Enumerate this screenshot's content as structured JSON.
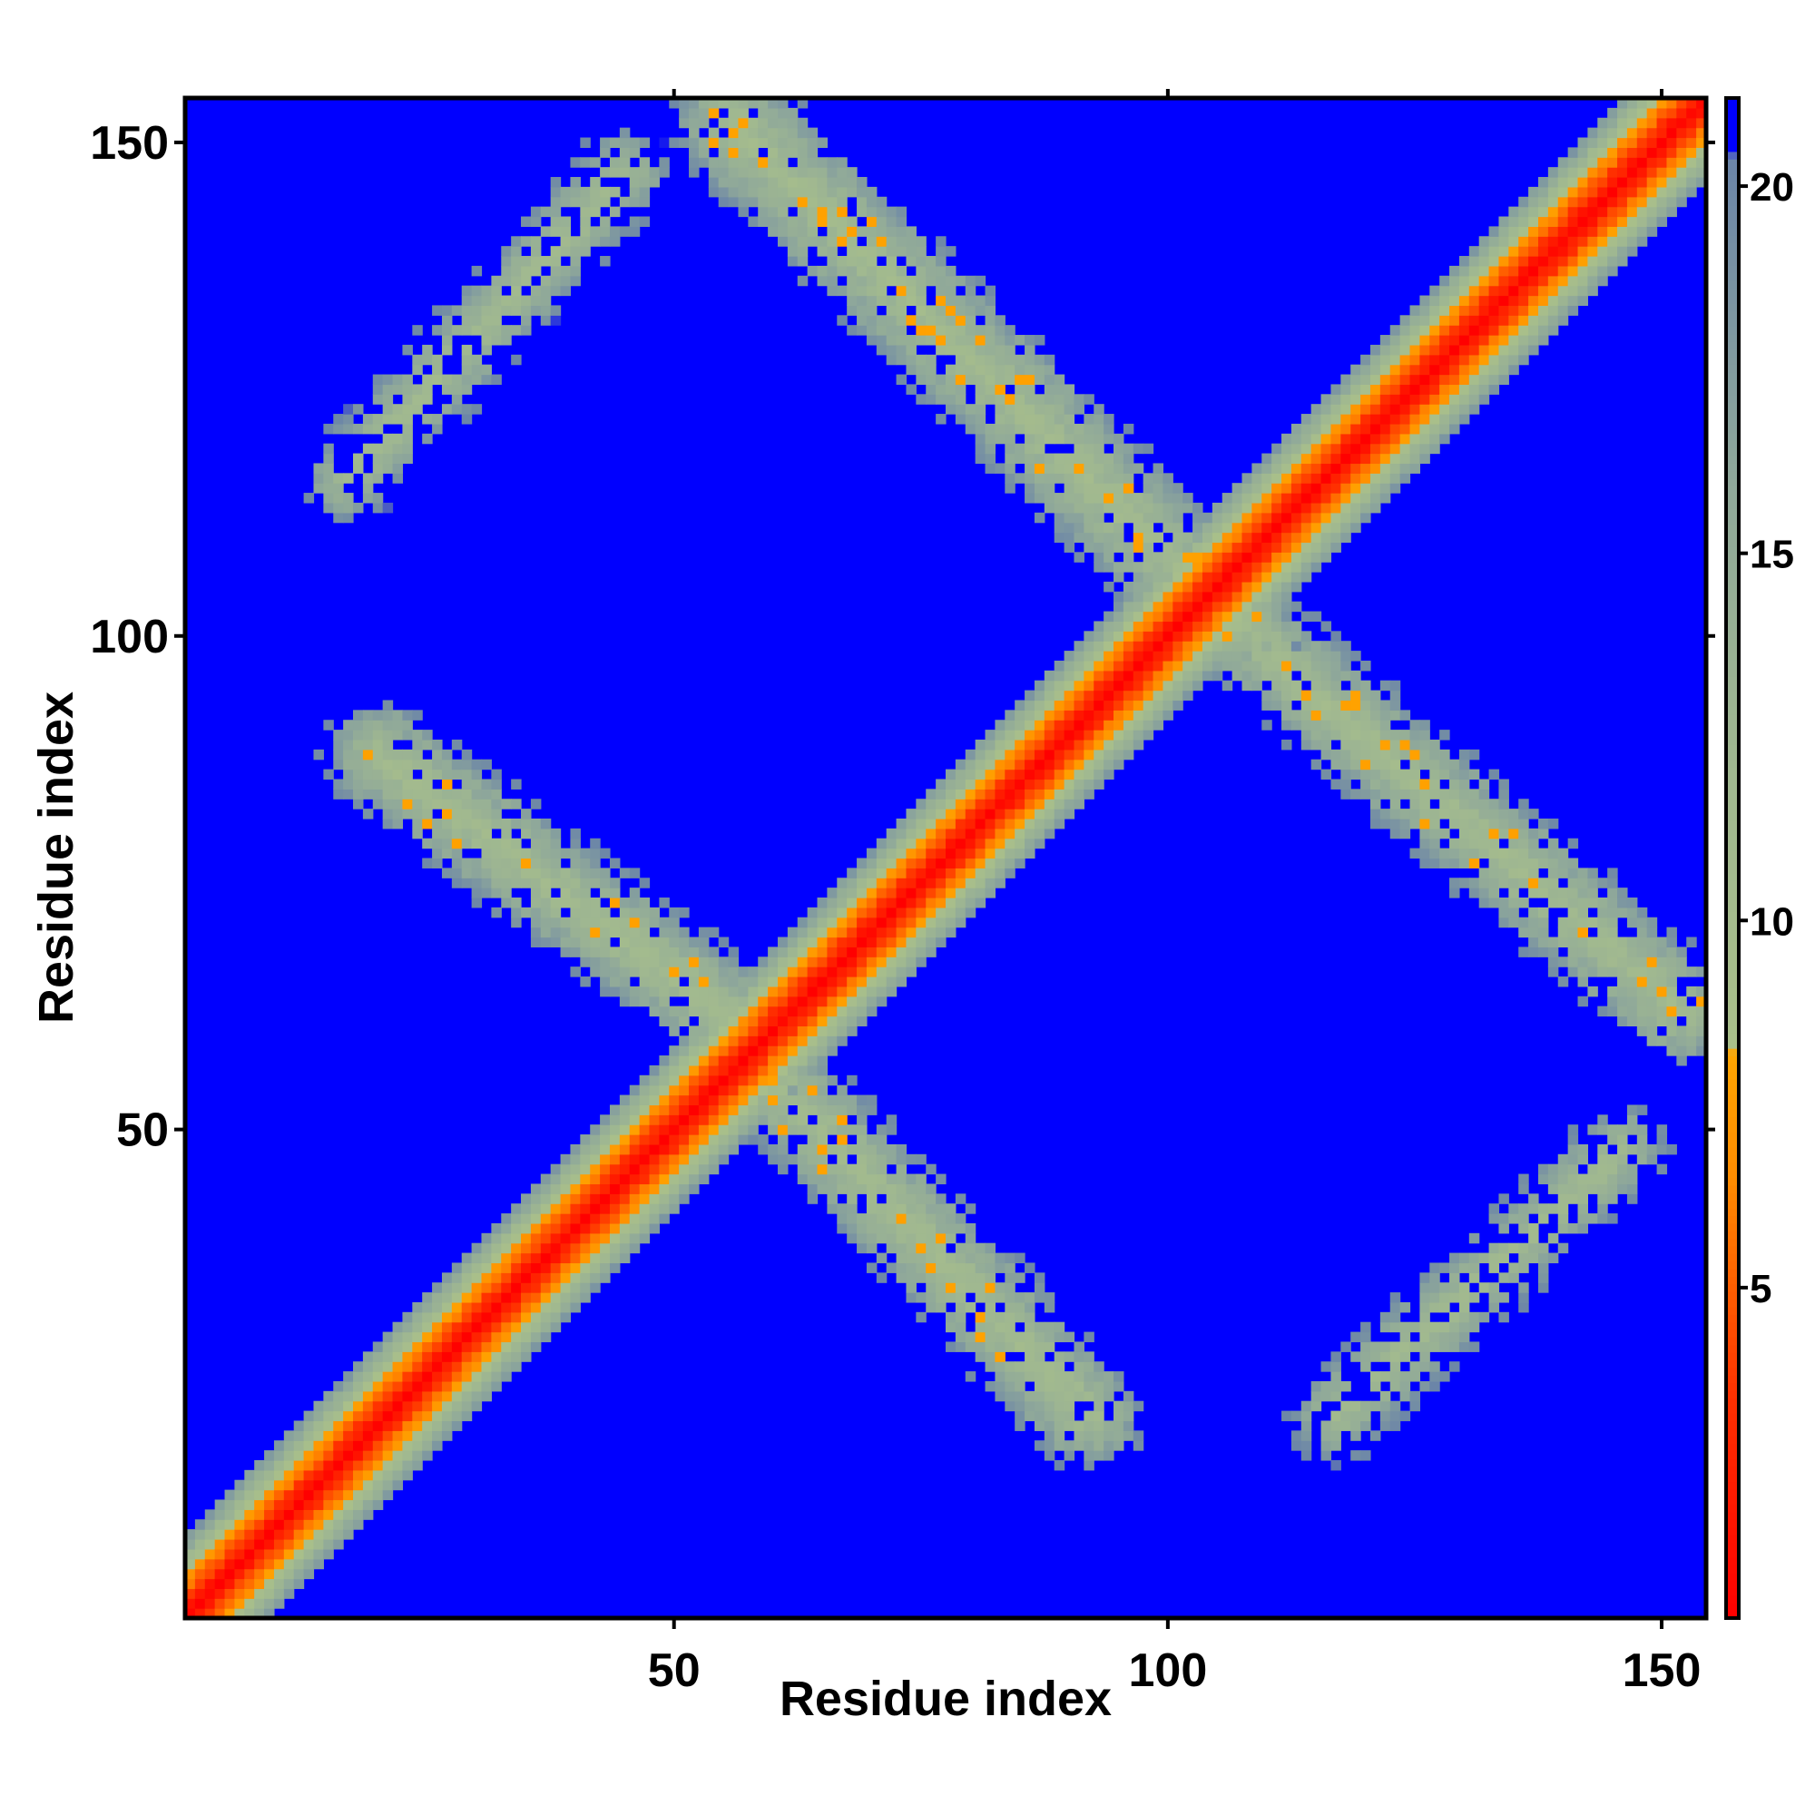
{
  "chart_data": {
    "type": "heatmap",
    "title": "",
    "xlabel": "Residue index",
    "ylabel": "Residue index",
    "n_residues": 154,
    "xlim": [
      1,
      154
    ],
    "ylim": [
      1,
      154
    ],
    "x_ticks": [
      50,
      100,
      150
    ],
    "y_ticks": [
      50,
      100,
      150
    ],
    "colorbar": {
      "range": [
        0.5,
        21.2
      ],
      "ticks": [
        5,
        10,
        15,
        20
      ],
      "stops": [
        {
          "value": 0.5,
          "color": "#ff0000"
        },
        {
          "value": 3.5,
          "color": "#ff3000"
        },
        {
          "value": 6.5,
          "color": "#ff8c00"
        },
        {
          "value": 8.2,
          "color": "#ffa500"
        },
        {
          "value": 8.3,
          "color": "#a9bf8a"
        },
        {
          "value": 12.0,
          "color": "#a0b890"
        },
        {
          "value": 16.0,
          "color": "#8fa89a"
        },
        {
          "value": 20.4,
          "color": "#6b85a8"
        },
        {
          "value": 20.5,
          "color": "#0000ff"
        },
        {
          "value": 21.2,
          "color": "#0000ff"
        }
      ],
      "background_color": "#0000ff"
    },
    "contact_regions": [
      {
        "name": "diagonal",
        "segment": [
          [
            1,
            1
          ],
          [
            154,
            154
          ]
        ],
        "halfwidth": 7.5
      },
      {
        "name": "anti-diagonal upper-left to center",
        "segment": [
          [
            56,
            152
          ],
          [
            107,
            101
          ]
        ],
        "halfwidth": 5.0
      },
      {
        "name": "anti-diagonal center to lower-right",
        "segment": [
          [
            107,
            101
          ],
          [
            152,
            62
          ]
        ],
        "halfwidth": 4.5
      },
      {
        "name": "anti-diagonal upper-left of center",
        "segment": [
          [
            20,
            88
          ],
          [
            60,
            58
          ]
        ],
        "halfwidth": 4.5
      },
      {
        "name": "anti-diagonal center to bottom",
        "segment": [
          [
            60,
            55
          ],
          [
            92,
            21
          ]
        ],
        "halfwidth": 4.5
      },
      {
        "name": "upper-left patch",
        "segment": [
          [
            17,
            116
          ],
          [
            45,
            147
          ]
        ],
        "halfwidth": 3.5
      },
      {
        "name": "lower-right patch",
        "segment": [
          [
            117,
            21
          ],
          [
            146,
            48
          ]
        ],
        "halfwidth": 3.5
      }
    ]
  }
}
